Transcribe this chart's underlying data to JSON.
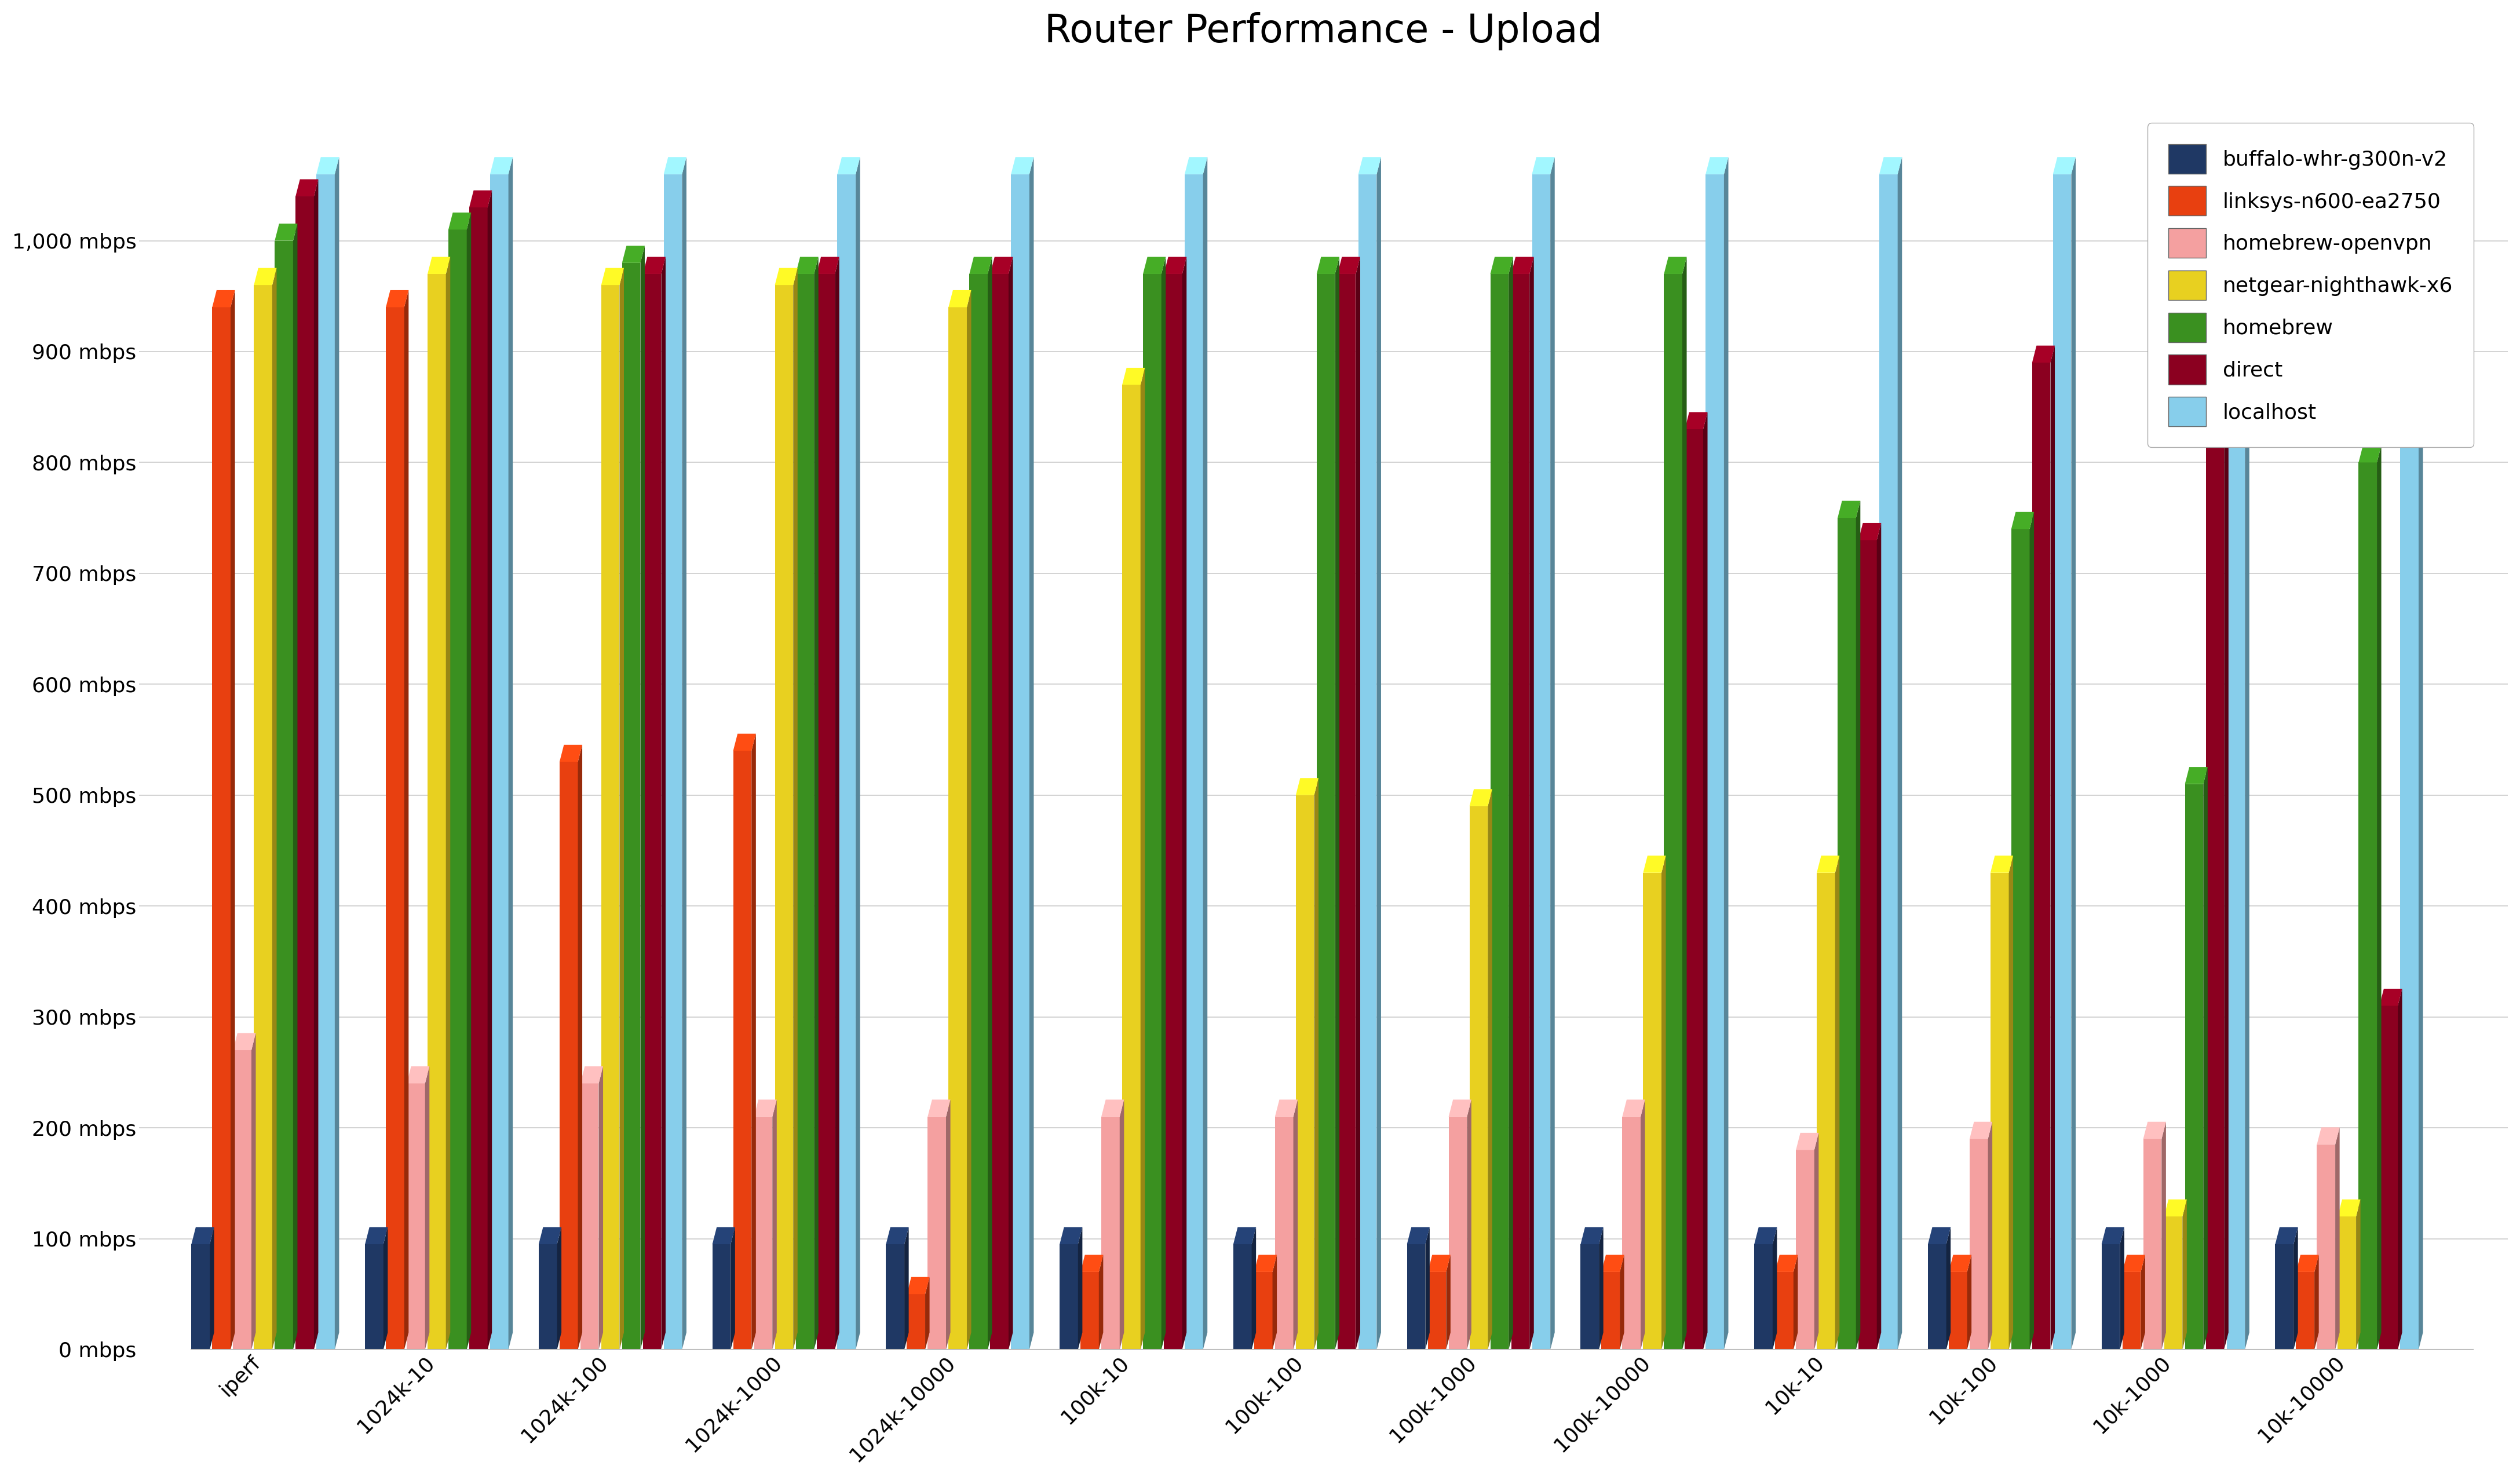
{
  "title": "Router Performance - Upload",
  "categories": [
    "iperf",
    "1024k-10",
    "1024k-100",
    "1024k-1000",
    "1024k-10000",
    "100k-10",
    "100k-100",
    "100k-1000",
    "100k-10000",
    "10k-10",
    "10k-100",
    "10k-1000",
    "10k-10000"
  ],
  "series": {
    "buffalo-whr-g300n-v2": [
      95,
      95,
      95,
      95,
      95,
      95,
      95,
      95,
      95,
      95,
      95,
      95,
      95
    ],
    "linksys-n600-ea2750": [
      940,
      940,
      530,
      540,
      50,
      70,
      70,
      70,
      70,
      70,
      70,
      70,
      70
    ],
    "homebrew-openvpn": [
      270,
      240,
      240,
      210,
      210,
      210,
      210,
      210,
      210,
      180,
      190,
      190,
      185
    ],
    "netgear-nighthawk-x6": [
      960,
      970,
      960,
      960,
      940,
      870,
      500,
      490,
      430,
      430,
      430,
      120,
      120
    ],
    "homebrew": [
      1000,
      1010,
      980,
      970,
      970,
      970,
      970,
      970,
      970,
      750,
      740,
      510,
      800
    ],
    "direct": [
      1040,
      1030,
      970,
      970,
      970,
      970,
      970,
      970,
      830,
      730,
      890,
      910,
      310
    ],
    "localhost": [
      1060,
      1060,
      1060,
      1060,
      1060,
      1060,
      1060,
      1060,
      1060,
      1060,
      1060,
      1060,
      1060
    ]
  },
  "series_order": [
    "buffalo-whr-g300n-v2",
    "linksys-n600-ea2750",
    "homebrew-openvpn",
    "netgear-nighthawk-x6",
    "homebrew",
    "direct",
    "localhost"
  ],
  "colors": {
    "buffalo-whr-g300n-v2": "#1f3864",
    "linksys-n600-ea2750": "#e84010",
    "homebrew-openvpn": "#f4a0a0",
    "netgear-nighthawk-x6": "#e8d020",
    "homebrew": "#3a9020",
    "direct": "#8b0020",
    "localhost": "#87ceeb"
  },
  "ylim": [
    0,
    1100
  ],
  "yticks": [
    0,
    100,
    200,
    300,
    400,
    500,
    600,
    700,
    800,
    900,
    1000
  ],
  "ytick_labels": [
    "0 mbps",
    "100 mbps",
    "200 mbps",
    "300 mbps",
    "400 mbps",
    "500 mbps",
    "600 mbps",
    "700 mbps",
    "800 mbps",
    "900 mbps",
    "1,000 mbps"
  ],
  "background_color": "#ffffff",
  "grid_color": "#cccccc",
  "title_fontsize": 48,
  "tick_fontsize": 26,
  "legend_fontsize": 26
}
